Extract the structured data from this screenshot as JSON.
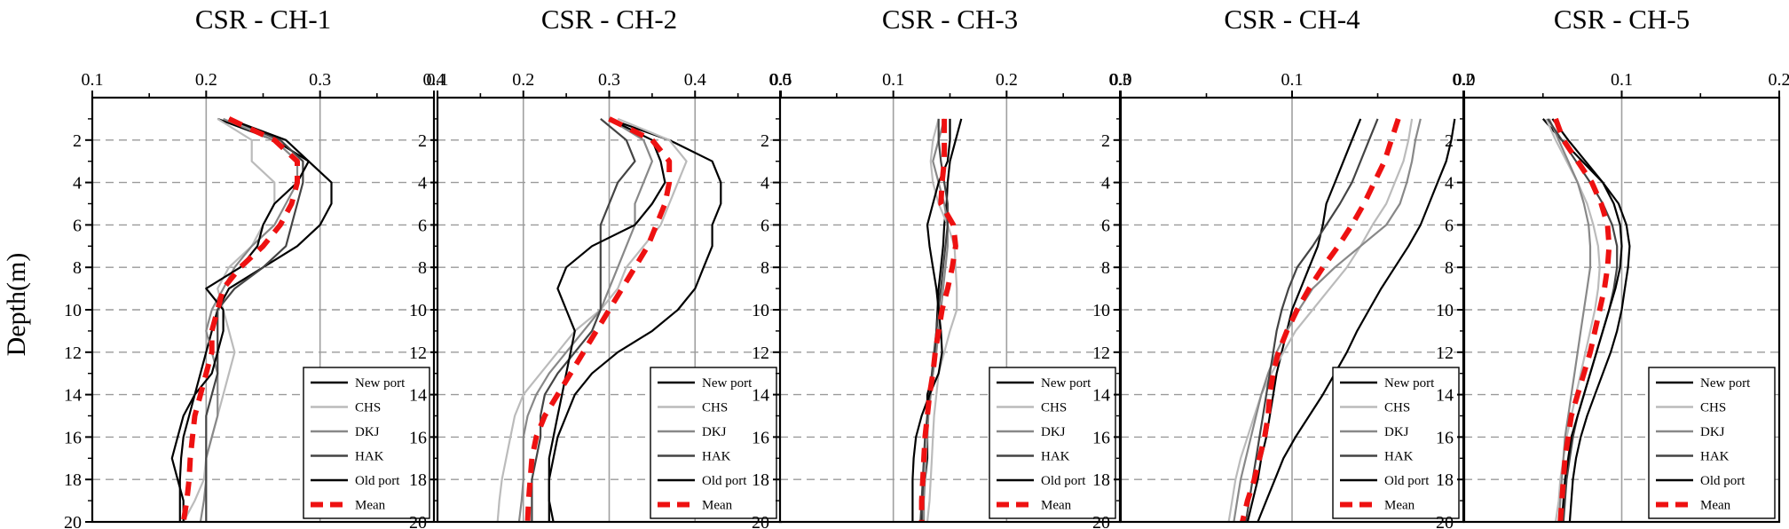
{
  "figure": {
    "ylabel": "Depth(m)"
  },
  "chart_data": [
    {
      "type": "line",
      "title": "CSR - CH-1",
      "xlim": [
        0.1,
        0.4
      ],
      "xticks": [
        0.1,
        0.2,
        0.3,
        0.4
      ],
      "tick_decimals": 1,
      "ylim": [
        0,
        20
      ],
      "yticks": [
        2,
        4,
        6,
        8,
        10,
        12,
        14,
        16,
        18,
        20
      ],
      "depth": [
        1,
        2,
        3,
        4,
        5,
        6,
        7,
        8,
        9,
        10,
        11,
        12,
        13,
        14,
        15,
        16,
        17,
        18,
        19,
        20
      ],
      "series": [
        {
          "name": "New port",
          "color": "#000000",
          "dashed": false,
          "values": [
            0.21,
            0.26,
            0.29,
            0.31,
            0.31,
            0.3,
            0.28,
            0.25,
            0.22,
            0.21,
            0.205,
            0.2,
            0.195,
            0.19,
            0.185,
            0.18,
            0.178,
            0.177,
            0.177,
            0.177
          ]
        },
        {
          "name": "CHS",
          "color": "#bbbbbb",
          "dashed": false,
          "values": [
            0.21,
            0.24,
            0.24,
            0.26,
            0.26,
            0.25,
            0.24,
            0.22,
            0.21,
            0.215,
            0.22,
            0.225,
            0.22,
            0.215,
            0.21,
            0.205,
            0.2,
            0.198,
            0.19,
            0.18
          ]
        },
        {
          "name": "DKJ",
          "color": "#888888",
          "dashed": false,
          "values": [
            0.215,
            0.26,
            0.28,
            0.28,
            0.27,
            0.26,
            0.24,
            0.225,
            0.215,
            0.205,
            0.2,
            0.205,
            0.21,
            0.21,
            0.21,
            0.205,
            0.2,
            0.2,
            0.198,
            0.195
          ]
        },
        {
          "name": "HAK",
          "color": "#444444",
          "dashed": false,
          "values": [
            0.22,
            0.265,
            0.285,
            0.285,
            0.28,
            0.275,
            0.27,
            0.25,
            0.225,
            0.21,
            0.21,
            0.21,
            0.21,
            0.205,
            0.2,
            0.2,
            0.2,
            0.2,
            0.2,
            0.2
          ]
        },
        {
          "name": "Old port",
          "color": "#000000",
          "dashed": false,
          "values": [
            0.22,
            0.27,
            0.29,
            0.28,
            0.26,
            0.25,
            0.245,
            0.23,
            0.2,
            0.215,
            0.215,
            0.21,
            0.205,
            0.19,
            0.18,
            0.175,
            0.17,
            0.175,
            0.18,
            0.18
          ]
        },
        {
          "name": "Mean",
          "color": "#ee1111",
          "dashed": true,
          "values": [
            0.22,
            0.26,
            0.28,
            0.28,
            0.275,
            0.265,
            0.25,
            0.23,
            0.215,
            0.21,
            0.205,
            0.205,
            0.2,
            0.195,
            0.19,
            0.188,
            0.186,
            0.185,
            0.183,
            0.18
          ]
        }
      ]
    },
    {
      "type": "line",
      "title": "CSR - CH-2",
      "xlim": [
        0.1,
        0.5
      ],
      "xticks": [
        0.1,
        0.2,
        0.3,
        0.4,
        0.5
      ],
      "tick_decimals": 1,
      "ylim": [
        0,
        20
      ],
      "yticks": [
        2,
        4,
        6,
        8,
        10,
        12,
        14,
        16,
        18,
        20
      ],
      "depth": [
        1,
        2,
        3,
        4,
        5,
        6,
        7,
        8,
        9,
        10,
        11,
        12,
        13,
        14,
        15,
        16,
        17,
        18,
        19,
        20
      ],
      "series": [
        {
          "name": "New port",
          "color": "#000000",
          "dashed": false,
          "values": [
            0.3,
            0.37,
            0.42,
            0.43,
            0.43,
            0.42,
            0.42,
            0.41,
            0.4,
            0.38,
            0.35,
            0.31,
            0.28,
            0.26,
            0.25,
            0.24,
            0.235,
            0.23,
            0.23,
            0.23
          ]
        },
        {
          "name": "CHS",
          "color": "#bbbbbb",
          "dashed": false,
          "values": [
            0.31,
            0.37,
            0.39,
            0.38,
            0.37,
            0.36,
            0.34,
            0.32,
            0.31,
            0.29,
            0.26,
            0.24,
            0.22,
            0.2,
            0.19,
            0.185,
            0.18,
            0.175,
            0.172,
            0.17
          ]
        },
        {
          "name": "DKJ",
          "color": "#888888",
          "dashed": false,
          "values": [
            0.3,
            0.34,
            0.35,
            0.34,
            0.33,
            0.33,
            0.32,
            0.31,
            0.3,
            0.29,
            0.27,
            0.25,
            0.23,
            0.215,
            0.205,
            0.2,
            0.2,
            0.2,
            0.198,
            0.195
          ]
        },
        {
          "name": "HAK",
          "color": "#444444",
          "dashed": false,
          "values": [
            0.29,
            0.32,
            0.33,
            0.31,
            0.3,
            0.29,
            0.29,
            0.29,
            0.29,
            0.29,
            0.28,
            0.26,
            0.24,
            0.225,
            0.22,
            0.22,
            0.215,
            0.21,
            0.21,
            0.21
          ]
        },
        {
          "name": "Old port",
          "color": "#000000",
          "dashed": false,
          "values": [
            0.3,
            0.35,
            0.36,
            0.365,
            0.35,
            0.33,
            0.28,
            0.25,
            0.24,
            0.25,
            0.26,
            0.255,
            0.25,
            0.245,
            0.24,
            0.235,
            0.23,
            0.23,
            0.23,
            0.235
          ]
        },
        {
          "name": "Mean",
          "color": "#ee1111",
          "dashed": true,
          "values": [
            0.3,
            0.35,
            0.37,
            0.37,
            0.365,
            0.355,
            0.345,
            0.33,
            0.315,
            0.3,
            0.285,
            0.27,
            0.255,
            0.24,
            0.225,
            0.215,
            0.21,
            0.208,
            0.206,
            0.205
          ]
        }
      ]
    },
    {
      "type": "line",
      "title": "CSR - CH-3",
      "xlim": [
        0.0,
        0.3
      ],
      "xticks": [
        0.0,
        0.1,
        0.2,
        0.3
      ],
      "tick_decimals": 1,
      "ylim": [
        0,
        20
      ],
      "yticks": [
        2,
        4,
        6,
        8,
        10,
        12,
        14,
        16,
        18,
        20
      ],
      "depth": [
        1,
        2,
        3,
        4,
        5,
        6,
        7,
        8,
        9,
        10,
        11,
        12,
        13,
        14,
        15,
        16,
        17,
        18,
        19,
        20
      ],
      "series": [
        {
          "name": "New port",
          "color": "#000000",
          "dashed": false,
          "values": [
            0.16,
            0.155,
            0.15,
            0.148,
            0.147,
            0.145,
            0.144,
            0.142,
            0.14,
            0.139,
            0.138,
            0.137,
            0.135,
            0.13,
            0.13,
            0.13,
            0.13,
            0.128,
            0.125,
            0.125
          ]
        },
        {
          "name": "CHS",
          "color": "#bbbbbb",
          "dashed": false,
          "values": [
            0.14,
            0.135,
            0.133,
            0.135,
            0.14,
            0.148,
            0.154,
            0.155,
            0.156,
            0.156,
            0.15,
            0.145,
            0.14,
            0.138,
            0.136,
            0.135,
            0.134,
            0.133,
            0.132,
            0.13
          ]
        },
        {
          "name": "DKJ",
          "color": "#888888",
          "dashed": false,
          "values": [
            0.145,
            0.14,
            0.135,
            0.14,
            0.145,
            0.148,
            0.148,
            0.146,
            0.144,
            0.142,
            0.14,
            0.138,
            0.135,
            0.133,
            0.131,
            0.13,
            0.129,
            0.128,
            0.127,
            0.127
          ]
        },
        {
          "name": "HAK",
          "color": "#444444",
          "dashed": false,
          "values": [
            0.14,
            0.14,
            0.142,
            0.145,
            0.148,
            0.148,
            0.146,
            0.144,
            0.142,
            0.14,
            0.138,
            0.136,
            0.134,
            0.132,
            0.13,
            0.128,
            0.127,
            0.126,
            0.125,
            0.124
          ]
        },
        {
          "name": "Old port",
          "color": "#000000",
          "dashed": false,
          "values": [
            0.15,
            0.15,
            0.148,
            0.14,
            0.135,
            0.13,
            0.132,
            0.135,
            0.138,
            0.14,
            0.142,
            0.143,
            0.14,
            0.132,
            0.125,
            0.12,
            0.118,
            0.117,
            0.117,
            0.117
          ]
        },
        {
          "name": "Mean",
          "color": "#ee1111",
          "dashed": true,
          "values": [
            0.145,
            0.145,
            0.145,
            0.143,
            0.142,
            0.153,
            0.155,
            0.152,
            0.148,
            0.143,
            0.14,
            0.137,
            0.135,
            0.132,
            0.13,
            0.128,
            0.127,
            0.126,
            0.125,
            0.125
          ]
        }
      ]
    },
    {
      "type": "line",
      "title": "CSR - CH-4",
      "xlim": [
        0.0,
        0.2
      ],
      "xticks": [
        0.0,
        0.1,
        0.2
      ],
      "tick_decimals": 1,
      "ylim": [
        0,
        20
      ],
      "yticks": [
        2,
        4,
        6,
        8,
        10,
        12,
        14,
        16,
        18,
        20
      ],
      "depth": [
        1,
        2,
        3,
        4,
        5,
        6,
        7,
        8,
        9,
        10,
        11,
        12,
        13,
        14,
        15,
        16,
        17,
        18,
        19,
        20
      ],
      "series": [
        {
          "name": "New port",
          "color": "#000000",
          "dashed": false,
          "values": [
            0.14,
            0.135,
            0.13,
            0.125,
            0.12,
            0.118,
            0.115,
            0.11,
            0.105,
            0.1,
            0.097,
            0.094,
            0.091,
            0.089,
            0.087,
            0.085,
            0.082,
            0.08,
            0.077,
            0.074
          ]
        },
        {
          "name": "CHS",
          "color": "#bbbbbb",
          "dashed": false,
          "values": [
            0.17,
            0.168,
            0.165,
            0.16,
            0.155,
            0.147,
            0.14,
            0.132,
            0.122,
            0.112,
            0.102,
            0.095,
            0.088,
            0.082,
            0.078,
            0.074,
            0.07,
            0.067,
            0.065,
            0.063
          ]
        },
        {
          "name": "DKJ",
          "color": "#888888",
          "dashed": false,
          "values": [
            0.175,
            0.172,
            0.17,
            0.167,
            0.163,
            0.155,
            0.14,
            0.125,
            0.112,
            0.104,
            0.097,
            0.091,
            0.086,
            0.082,
            0.079,
            0.076,
            0.073,
            0.07,
            0.068,
            0.066
          ]
        },
        {
          "name": "HAK",
          "color": "#444444",
          "dashed": false,
          "values": [
            0.15,
            0.145,
            0.14,
            0.135,
            0.128,
            0.12,
            0.112,
            0.103,
            0.098,
            0.094,
            0.091,
            0.089,
            0.087,
            0.085,
            0.083,
            0.081,
            0.079,
            0.077,
            0.075,
            0.073
          ]
        },
        {
          "name": "Old port",
          "color": "#000000",
          "dashed": false,
          "values": [
            0.195,
            0.193,
            0.19,
            0.185,
            0.18,
            0.175,
            0.168,
            0.16,
            0.152,
            0.145,
            0.138,
            0.132,
            0.125,
            0.118,
            0.11,
            0.102,
            0.095,
            0.09,
            0.085,
            0.08
          ]
        },
        {
          "name": "Mean",
          "color": "#ee1111",
          "dashed": true,
          "values": [
            0.162,
            0.158,
            0.154,
            0.148,
            0.142,
            0.135,
            0.127,
            0.118,
            0.11,
            0.103,
            0.097,
            0.092,
            0.089,
            0.087,
            0.086,
            0.084,
            0.081,
            0.078,
            0.074,
            0.071
          ]
        }
      ]
    },
    {
      "type": "line",
      "title": "CSR - CH-5",
      "xlim": [
        0.0,
        0.2
      ],
      "xticks": [
        0.0,
        0.1,
        0.2
      ],
      "tick_decimals": 1,
      "ylim": [
        0,
        20
      ],
      "yticks": [
        2,
        4,
        6,
        8,
        10,
        12,
        14,
        16,
        18,
        20
      ],
      "depth": [
        1,
        2,
        3,
        4,
        5,
        6,
        7,
        8,
        9,
        10,
        11,
        12,
        13,
        14,
        15,
        16,
        17,
        18,
        19,
        20
      ],
      "series": [
        {
          "name": "New port",
          "color": "#000000",
          "dashed": false,
          "values": [
            0.05,
            0.062,
            0.075,
            0.088,
            0.098,
            0.103,
            0.105,
            0.104,
            0.102,
            0.1,
            0.097,
            0.093,
            0.088,
            0.083,
            0.078,
            0.074,
            0.071,
            0.069,
            0.068,
            0.067
          ]
        },
        {
          "name": "CHS",
          "color": "#bbbbbb",
          "dashed": false,
          "values": [
            0.052,
            0.058,
            0.065,
            0.072,
            0.078,
            0.082,
            0.085,
            0.086,
            0.085,
            0.083,
            0.08,
            0.077,
            0.074,
            0.071,
            0.068,
            0.065,
            0.063,
            0.061,
            0.06,
            0.058
          ]
        },
        {
          "name": "DKJ",
          "color": "#888888",
          "dashed": false,
          "values": [
            0.054,
            0.06,
            0.066,
            0.072,
            0.076,
            0.079,
            0.08,
            0.08,
            0.078,
            0.076,
            0.074,
            0.072,
            0.07,
            0.068,
            0.066,
            0.064,
            0.063,
            0.062,
            0.061,
            0.06
          ]
        },
        {
          "name": "HAK",
          "color": "#444444",
          "dashed": false,
          "values": [
            0.053,
            0.062,
            0.071,
            0.08,
            0.088,
            0.094,
            0.097,
            0.097,
            0.095,
            0.092,
            0.088,
            0.084,
            0.08,
            0.076,
            0.072,
            0.069,
            0.067,
            0.065,
            0.064,
            0.063
          ]
        },
        {
          "name": "Old port",
          "color": "#000000",
          "dashed": false,
          "values": [
            0.056,
            0.066,
            0.077,
            0.088,
            0.095,
            0.099,
            0.1,
            0.099,
            0.096,
            0.092,
            0.088,
            0.084,
            0.08,
            0.076,
            0.072,
            0.068,
            0.066,
            0.064,
            0.063,
            0.062
          ]
        },
        {
          "name": "Mean",
          "color": "#ee1111",
          "dashed": true,
          "values": [
            0.058,
            0.063,
            0.072,
            0.081,
            0.087,
            0.091,
            0.092,
            0.091,
            0.089,
            0.086,
            0.083,
            0.08,
            0.076,
            0.072,
            0.068,
            0.066,
            0.064,
            0.063,
            0.062,
            0.061
          ]
        }
      ]
    }
  ]
}
